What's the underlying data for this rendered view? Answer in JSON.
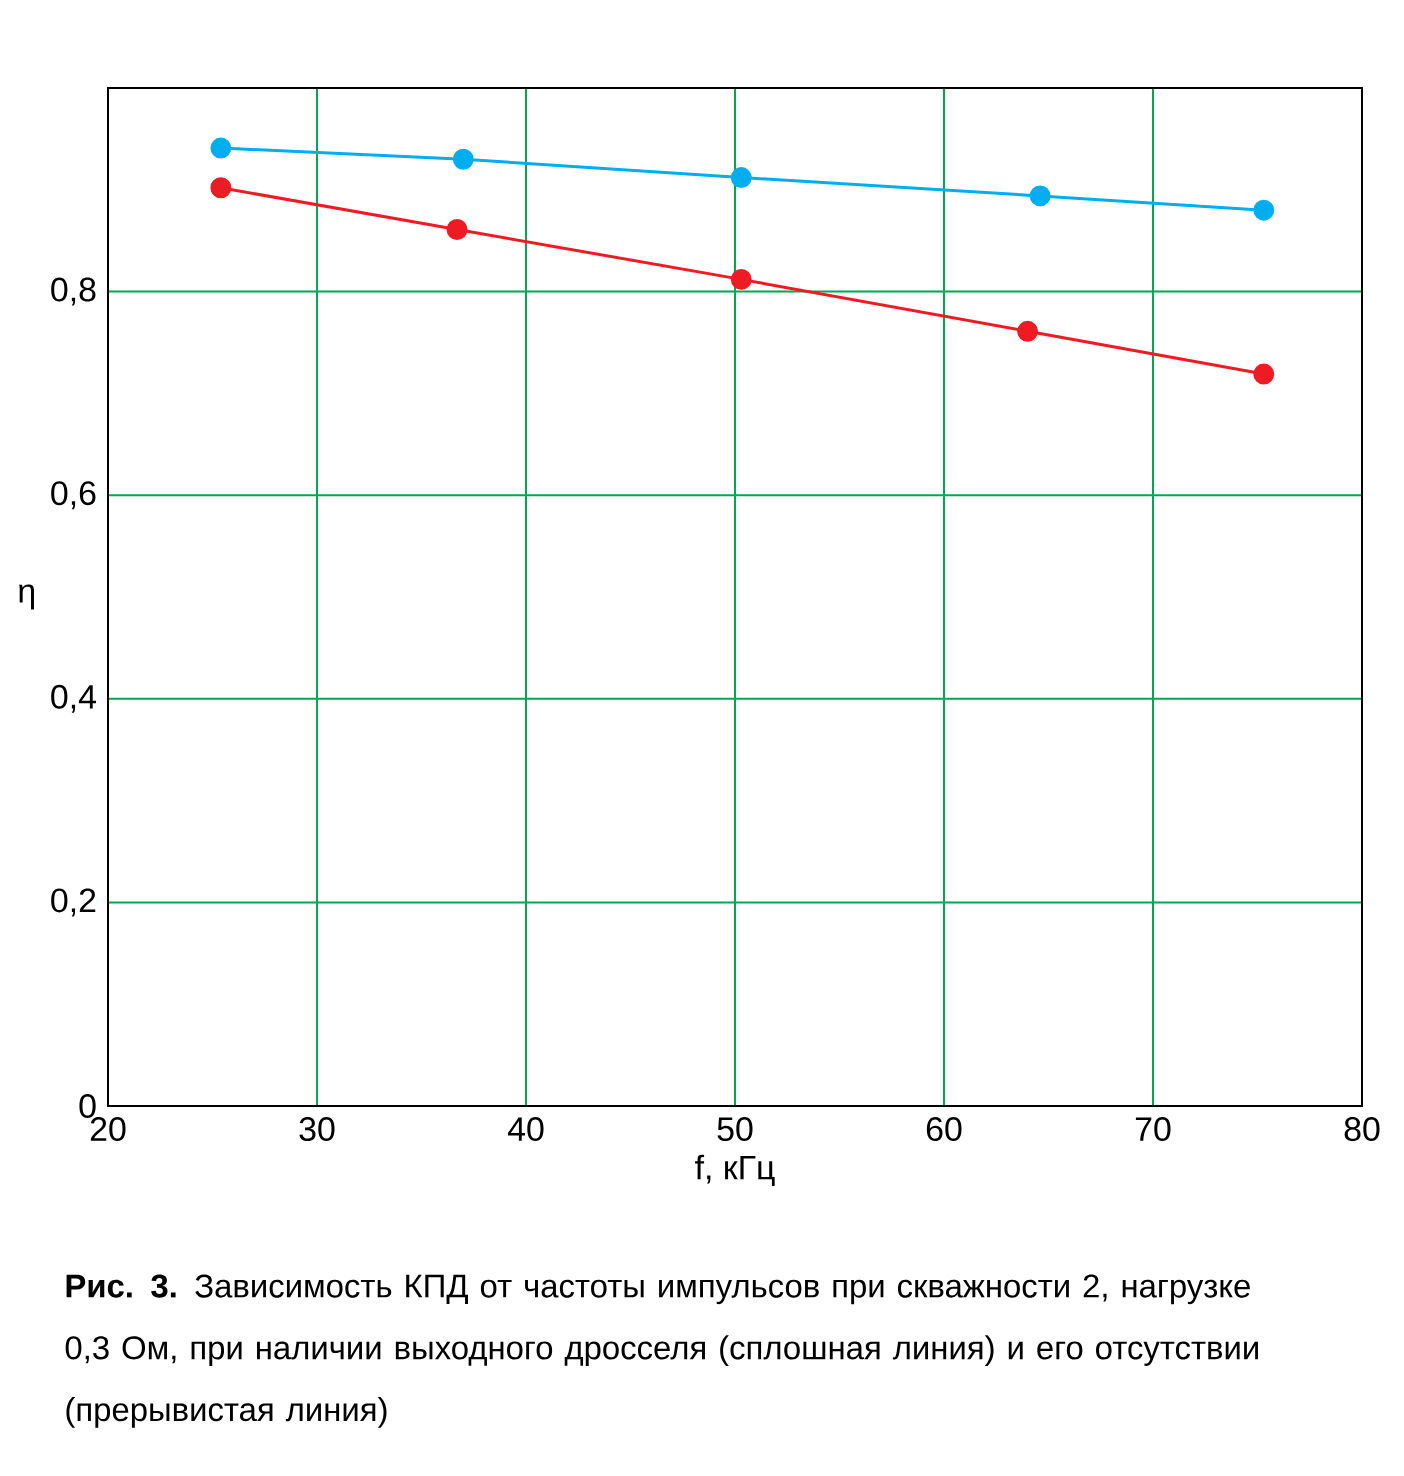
{
  "chart_data": {
    "type": "line",
    "xlabel": "f, кГц",
    "ylabel": "η",
    "xlim": [
      20,
      80
    ],
    "xticks": [
      20,
      30,
      40,
      50,
      60,
      70,
      80
    ],
    "ylim": [
      0,
      1
    ],
    "yticks": [
      0,
      {
        "value": 0.2,
        "label": "0,2"
      },
      {
        "value": 0.4,
        "label": "0,4"
      },
      {
        "value": 0.6,
        "label": "0,6"
      },
      {
        "value": 0.8,
        "label": "0,8"
      }
    ],
    "grid": true,
    "marker": "circle",
    "line_style": "solid",
    "series": [
      {
        "color": "#00aeef",
        "x": [
          25.4,
          37.0,
          50.3,
          64.6,
          75.3
        ],
        "values": [
          0.941,
          0.93,
          0.912,
          0.894,
          0.88
        ]
      },
      {
        "color": "#ed1c24",
        "x": [
          25.4,
          36.7,
          50.3,
          64.0,
          75.3
        ],
        "values": [
          0.902,
          0.861,
          0.812,
          0.761,
          0.719
        ]
      }
    ],
    "annotations": [
      "**Рис. 3.** Зависимость КПД от частоты импульсов при скважности 2, нагрузке 0,3 Ом, при наличии выходного дросселя (сплошная линия) и его отсутствии (прерывистая линия)"
    ]
  }
}
